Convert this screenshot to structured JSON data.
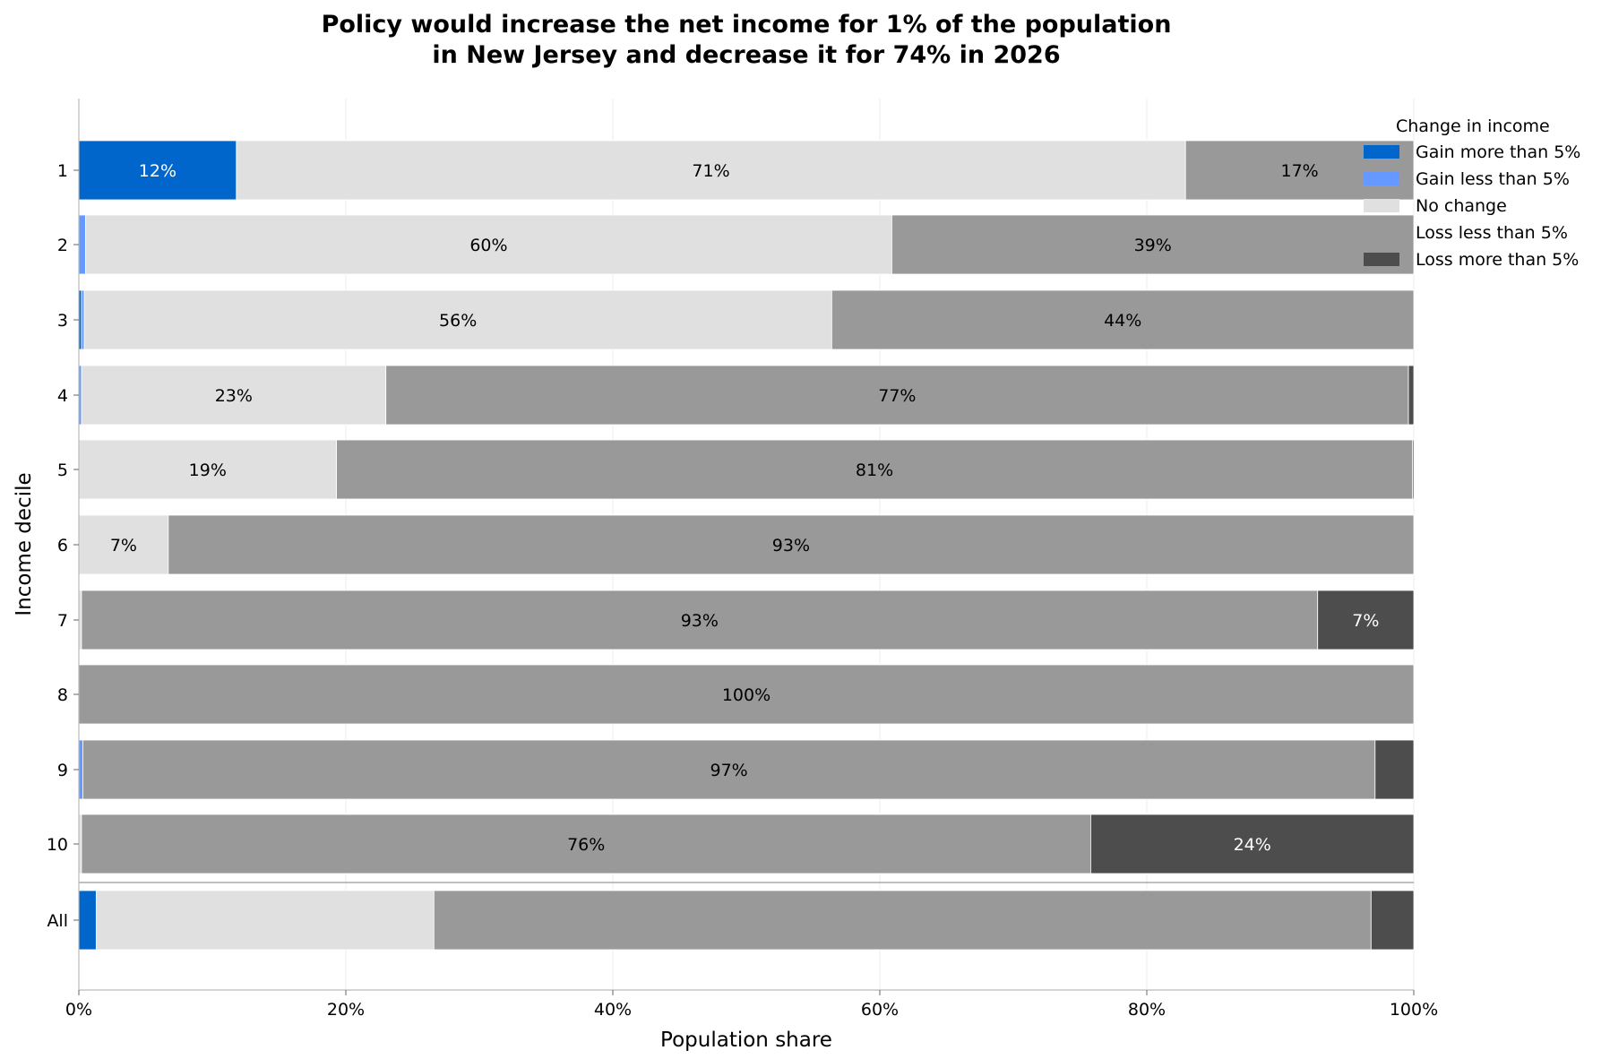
{
  "chart_data": {
    "type": "bar",
    "orientation": "horizontal",
    "stacked": true,
    "title_lines": [
      "Policy would increase the net income for 1% of the population",
      "in New Jersey and decrease it for 74% in 2026"
    ],
    "xlabel": "Population share",
    "ylabel": "Income decile",
    "xlim": [
      0,
      100
    ],
    "x_ticks": [
      0,
      20,
      40,
      60,
      80,
      100
    ],
    "x_tick_labels": [
      "0%",
      "20%",
      "40%",
      "60%",
      "80%",
      "100%"
    ],
    "grid": "vertical",
    "categories": [
      "1",
      "2",
      "3",
      "4",
      "5",
      "6",
      "7",
      "8",
      "9",
      "10",
      "All"
    ],
    "series": [
      {
        "name": "Gain more than 5%",
        "color": "#0066cc",
        "values": [
          11.8,
          0.0,
          0.2,
          0.0,
          0.0,
          0.0,
          0.0,
          0.0,
          0.0,
          0.0,
          1.3
        ]
      },
      {
        "name": "Gain less than 5%",
        "color": "#6699ff",
        "values": [
          0.0,
          0.5,
          0.2,
          0.2,
          0.0,
          0.0,
          0.0,
          0.0,
          0.3,
          0.0,
          0.0
        ]
      },
      {
        "name": "No change",
        "color": "#e0e0e0",
        "values": [
          71.1,
          60.4,
          56.0,
          22.8,
          19.3,
          6.7,
          0.2,
          0.0,
          0.0,
          0.2,
          25.3
        ]
      },
      {
        "name": "Loss less than 5%",
        "color": "#999999",
        "values": [
          17.1,
          39.1,
          43.6,
          76.6,
          80.6,
          93.3,
          92.6,
          100.0,
          96.8,
          75.6,
          70.2
        ]
      },
      {
        "name": "Loss more than 5%",
        "color": "#4d4d4d",
        "values": [
          0.0,
          0.0,
          0.0,
          0.4,
          0.1,
          0.0,
          7.2,
          0.0,
          2.9,
          24.2,
          3.2
        ]
      }
    ],
    "data_labels": [
      [
        "12%",
        "",
        "71%",
        "17%",
        ""
      ],
      [
        "",
        "",
        "60%",
        "39%",
        ""
      ],
      [
        "",
        "",
        "56%",
        "44%",
        ""
      ],
      [
        "",
        "",
        "23%",
        "77%",
        ""
      ],
      [
        "",
        "",
        "19%",
        "81%",
        ""
      ],
      [
        "",
        "",
        "7%",
        "93%",
        ""
      ],
      [
        "",
        "",
        "",
        "93%",
        "7%"
      ],
      [
        "",
        "",
        "",
        "100%",
        ""
      ],
      [
        "",
        "",
        "",
        "97%",
        ""
      ],
      [
        "",
        "",
        "",
        "76%",
        "24%"
      ],
      [
        "",
        "",
        "",
        "",
        ""
      ]
    ],
    "legend": {
      "title": "Change in income",
      "placement": "top-right"
    }
  }
}
